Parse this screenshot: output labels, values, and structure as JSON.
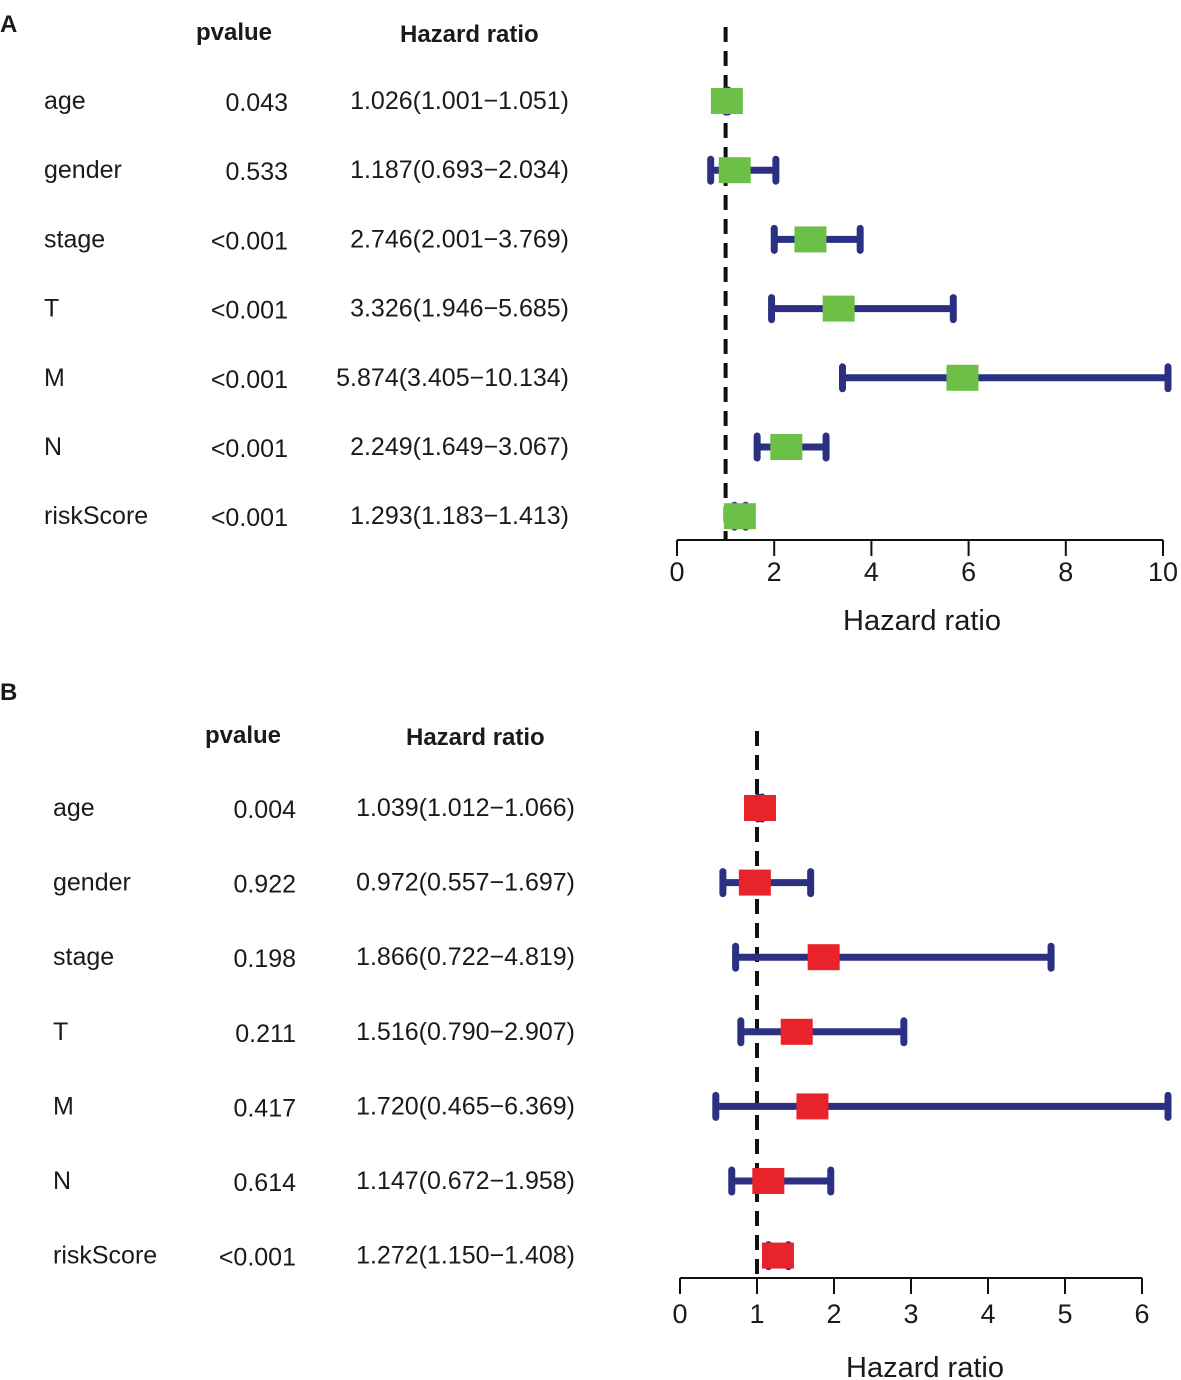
{
  "colors": {
    "ci_line": "#2b3082",
    "box_a": "#6cbf47",
    "box_b": "#e8232a",
    "reference_line": "#111111",
    "axis": "#111111",
    "text": "#1a1a1a"
  },
  "chart_data": [
    {
      "type": "forest",
      "panel_label": "A",
      "header": {
        "pvalue": "pvalue",
        "hr": "Hazard ratio"
      },
      "xlabel": "Hazard ratio",
      "xlim": [
        0,
        10
      ],
      "xticks": [
        "0",
        "2",
        "4",
        "6",
        "8",
        "10"
      ],
      "reference": 1,
      "rows": [
        {
          "label": "age",
          "pvalue": "0.043",
          "hr_text": "1.026(1.001−1.051)",
          "hr": 1.026,
          "lo": 1.001,
          "hi": 1.051
        },
        {
          "label": "gender",
          "pvalue": "0.533",
          "hr_text": "1.187(0.693−2.034)",
          "hr": 1.187,
          "lo": 0.693,
          "hi": 2.034
        },
        {
          "label": "stage",
          "pvalue": "<0.001",
          "hr_text": "2.746(2.001−3.769)",
          "hr": 2.746,
          "lo": 2.001,
          "hi": 3.769
        },
        {
          "label": "T",
          "pvalue": "<0.001",
          "hr_text": "3.326(1.946−5.685)",
          "hr": 3.326,
          "lo": 1.946,
          "hi": 5.685
        },
        {
          "label": "M",
          "pvalue": "<0.001",
          "hr_text": "5.874(3.405−10.134)",
          "hr": 5.874,
          "lo": 3.405,
          "hi": 10.134
        },
        {
          "label": "N",
          "pvalue": "<0.001",
          "hr_text": "2.249(1.649−3.067)",
          "hr": 2.249,
          "lo": 1.649,
          "hi": 3.067
        },
        {
          "label": "riskScore",
          "pvalue": "<0.001",
          "hr_text": "1.293(1.183−1.413)",
          "hr": 1.293,
          "lo": 1.183,
          "hi": 1.413
        }
      ]
    },
    {
      "type": "forest",
      "panel_label": "B",
      "header": {
        "pvalue": "pvalue",
        "hr": "Hazard ratio"
      },
      "xlabel": "Hazard ratio",
      "xlim": [
        0,
        6
      ],
      "xticks": [
        "0",
        "1",
        "2",
        "3",
        "4",
        "5",
        "6"
      ],
      "reference": 1,
      "rows": [
        {
          "label": "age",
          "pvalue": "0.004",
          "hr_text": "1.039(1.012−1.066)",
          "hr": 1.039,
          "lo": 1.012,
          "hi": 1.066
        },
        {
          "label": "gender",
          "pvalue": "0.922",
          "hr_text": "0.972(0.557−1.697)",
          "hr": 0.972,
          "lo": 0.557,
          "hi": 1.697
        },
        {
          "label": "stage",
          "pvalue": "0.198",
          "hr_text": "1.866(0.722−4.819)",
          "hr": 1.866,
          "lo": 0.722,
          "hi": 4.819
        },
        {
          "label": "T",
          "pvalue": "0.211",
          "hr_text": "1.516(0.790−2.907)",
          "hr": 1.516,
          "lo": 0.79,
          "hi": 2.907
        },
        {
          "label": "M",
          "pvalue": "0.417",
          "hr_text": "1.720(0.465−6.369)",
          "hr": 1.72,
          "lo": 0.465,
          "hi": 6.369
        },
        {
          "label": "N",
          "pvalue": "0.614",
          "hr_text": "1.147(0.672−1.958)",
          "hr": 1.147,
          "lo": 0.672,
          "hi": 1.958
        },
        {
          "label": "riskScore",
          "pvalue": "<0.001",
          "hr_text": "1.272(1.150−1.408)",
          "hr": 1.272,
          "lo": 1.15,
          "hi": 1.408
        }
      ]
    }
  ]
}
